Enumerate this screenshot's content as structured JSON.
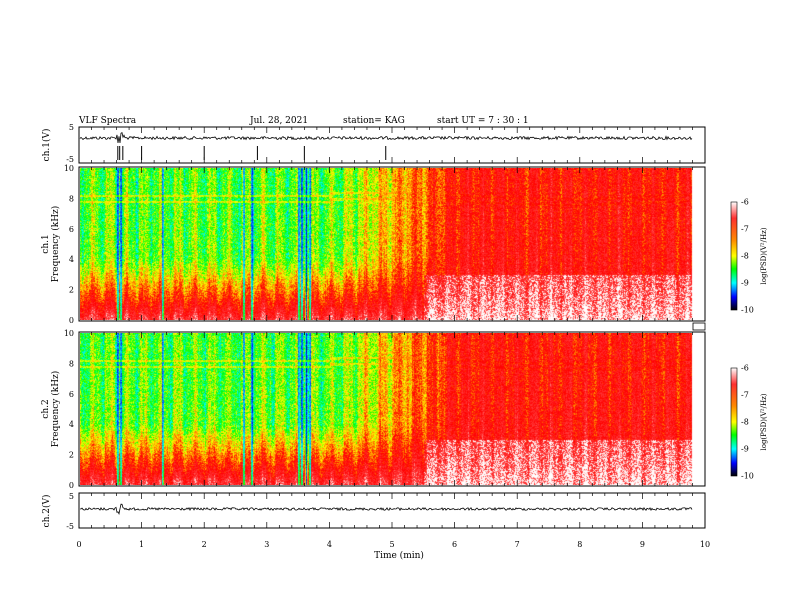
{
  "header": {
    "title": "VLF Spectra",
    "date": "Jul. 28, 2021",
    "station": "station= KAG",
    "start_ut": "start UT =  7 : 30 : 1"
  },
  "chart_data": [
    {
      "type": "line",
      "name": "ch1-waveform",
      "ylabel": "ch.1(V)",
      "ylim": [
        -5,
        5
      ],
      "y_ticks": [
        "5",
        "-5"
      ],
      "xlim": [
        0,
        10
      ],
      "baseline": 0,
      "glitches_min": [
        0.62,
        0.65,
        0.7,
        1.0,
        2.0,
        2.85,
        3.6,
        4.9
      ]
    },
    {
      "type": "heatmap",
      "name": "ch1-spectrogram",
      "ylabel_line1": "ch.1",
      "ylabel_line2": "Frequency (kHz)",
      "xlim": [
        0,
        10
      ],
      "ylim": [
        0,
        10
      ],
      "y_ticks": [
        "0",
        "2",
        "4",
        "6",
        "8",
        "10"
      ],
      "colorbar": {
        "label": "log(PSD)(V²/Hz)",
        "range": [
          -10,
          -6
        ],
        "ticks": [
          "-6",
          "-7",
          "-8",
          "-9",
          "-10"
        ]
      },
      "dark_bands_min": [
        0.6,
        0.65,
        1.32,
        2.62,
        2.75,
        3.5,
        3.55,
        3.62,
        3.68
      ],
      "quiet_region_min": [
        0,
        4.1
      ],
      "tone_khz": [
        8.2,
        7.8
      ]
    },
    {
      "type": "heatmap",
      "name": "ch2-spectrogram",
      "ylabel_line1": "ch.2",
      "ylabel_line2": "Frequency (kHz)",
      "xlim": [
        0,
        10
      ],
      "ylim": [
        0,
        10
      ],
      "y_ticks": [
        "0",
        "2",
        "4",
        "6",
        "8",
        "10"
      ],
      "colorbar": {
        "label": "log(PSD)(V²/Hz)",
        "range": [
          -10,
          -6
        ],
        "ticks": [
          "-6",
          "-7",
          "-8",
          "-9",
          "-10"
        ]
      }
    },
    {
      "type": "line",
      "name": "ch2-waveform",
      "ylabel": "ch.2(V)",
      "ylim": [
        -5,
        5
      ],
      "y_ticks": [
        "5",
        "-5"
      ],
      "xlim": [
        0,
        10
      ],
      "baseline": 0
    }
  ],
  "x_axis": {
    "label": "Time (min)",
    "range": [
      0,
      10
    ],
    "ticks": [
      "0",
      "1",
      "2",
      "3",
      "4",
      "5",
      "6",
      "7",
      "8",
      "9",
      "10"
    ]
  },
  "colors": {
    "colormap": [
      "#ffffff",
      "#ff0000",
      "#ffff00",
      "#00ff00",
      "#00ffff",
      "#0000ff",
      "#000000"
    ]
  }
}
